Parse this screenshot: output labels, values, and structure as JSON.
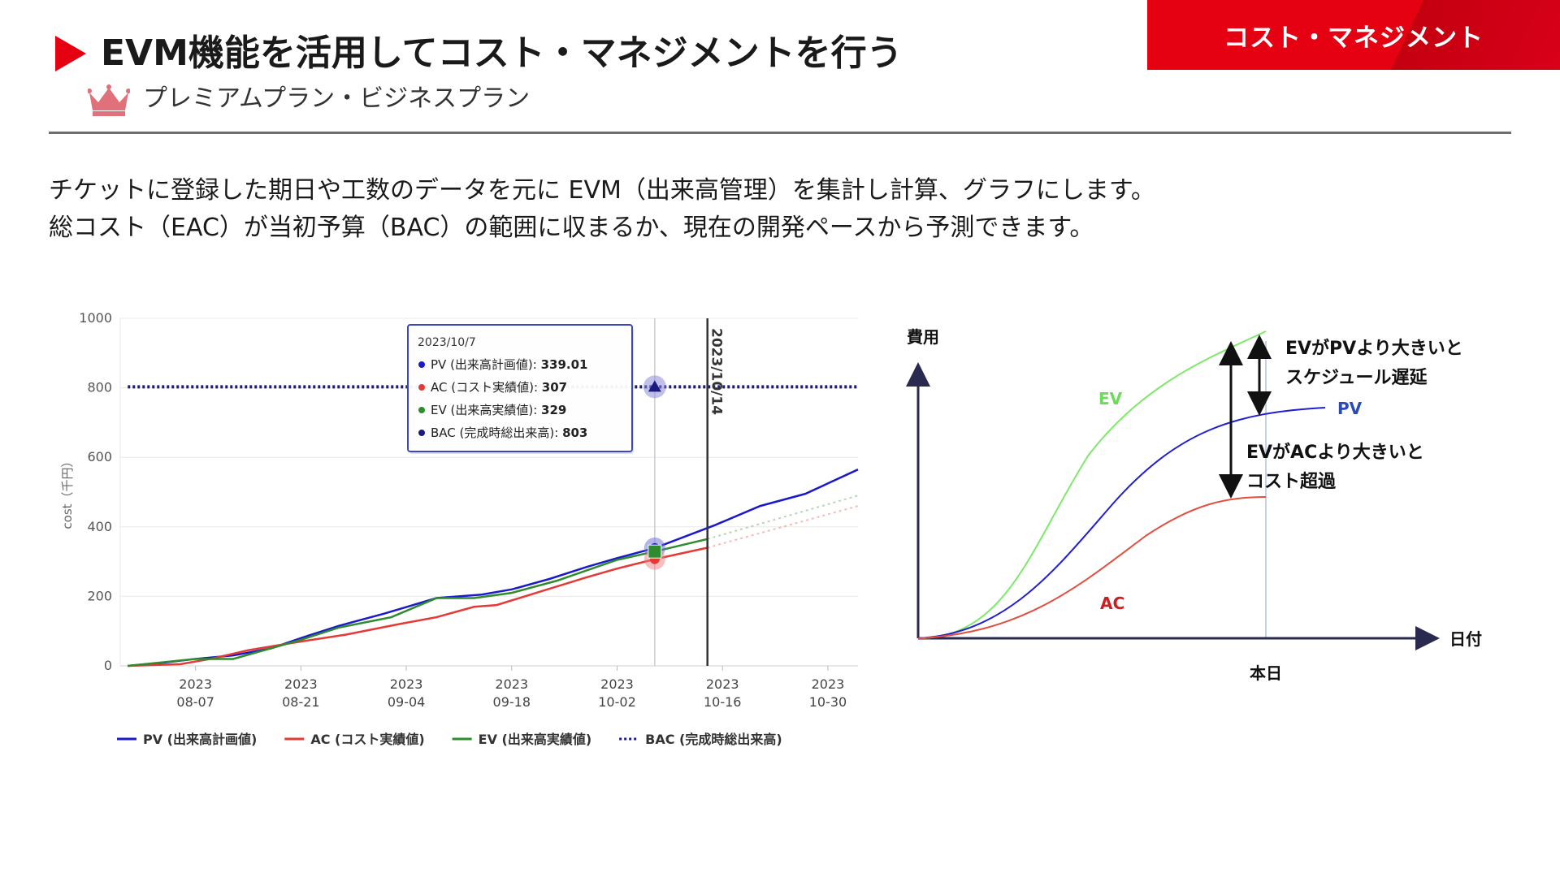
{
  "header": {
    "badge": "コスト・マネジメント",
    "title": "EVM機能を活用してコスト・マネジメントを行う",
    "plan": "プレミアムプラン・ビジネスプラン"
  },
  "description": {
    "line1": "チケットに登録した期日や工数のデータを元に EVM（出来高管理）を集計し計算、グラフにします。",
    "line2": "総コスト（EAC）が当初予算（BAC）の範囲に収まるか、現在の開発ペースから予測できます。"
  },
  "colors": {
    "accent": "#e50012",
    "pv": "#1a1acc",
    "ac": "#e53935",
    "ev": "#2e8b2e",
    "bac": "#1a1a80",
    "concept_ev": "#7fe86a",
    "concept_pv": "#2020d0",
    "concept_ac": "#e05040"
  },
  "chart_data": [
    {
      "type": "line",
      "title": "",
      "ylabel": "cost（千円）",
      "xlabel": "",
      "ylim": [
        0,
        1000
      ],
      "xlim": [
        "2023-07-28",
        "2023-11-03"
      ],
      "y_ticks": [
        "0",
        "200",
        "400",
        "600",
        "800",
        "1000"
      ],
      "x_ticks": [
        {
          "date": "2023-08-07",
          "year": "2023",
          "md": "08-07"
        },
        {
          "date": "2023-08-21",
          "year": "2023",
          "md": "08-21"
        },
        {
          "date": "2023-09-04",
          "year": "2023",
          "md": "09-04"
        },
        {
          "date": "2023-09-18",
          "year": "2023",
          "md": "09-18"
        },
        {
          "date": "2023-10-02",
          "year": "2023",
          "md": "10-02"
        },
        {
          "date": "2023-10-16",
          "year": "2023",
          "md": "10-16"
        },
        {
          "date": "2023-10-30",
          "year": "2023",
          "md": "10-30"
        }
      ],
      "grid": true,
      "legend_position": "bottom",
      "series": [
        {
          "key": "pv",
          "name": "PV (出来高計画値)",
          "x": [
            "2023-07-29",
            "2023-08-03",
            "2023-08-07",
            "2023-08-12",
            "2023-08-17",
            "2023-08-21",
            "2023-08-26",
            "2023-09-01",
            "2023-09-08",
            "2023-09-14",
            "2023-09-18",
            "2023-09-23",
            "2023-09-28",
            "2023-10-02",
            "2023-10-07",
            "2023-10-15",
            "2023-10-21",
            "2023-10-27",
            "2023-11-03"
          ],
          "values": [
            0,
            10,
            20,
            30,
            50,
            80,
            115,
            150,
            195,
            205,
            220,
            250,
            285,
            310,
            339.01,
            405,
            460,
            495,
            565
          ]
        },
        {
          "key": "ac",
          "name": "AC (コスト実績値)",
          "x": [
            "2023-07-29",
            "2023-08-05",
            "2023-08-09",
            "2023-08-14",
            "2023-08-21",
            "2023-08-27",
            "2023-09-03",
            "2023-09-08",
            "2023-09-13",
            "2023-09-16",
            "2023-09-22",
            "2023-09-28",
            "2023-10-02",
            "2023-10-07",
            "2023-10-14"
          ],
          "values": [
            0,
            5,
            20,
            45,
            70,
            90,
            120,
            140,
            170,
            175,
            215,
            255,
            280,
            307,
            340
          ]
        },
        {
          "key": "ev",
          "name": "EV (出来高実績値)",
          "x": [
            "2023-07-29",
            "2023-08-07",
            "2023-08-12",
            "2023-08-21",
            "2023-08-26",
            "2023-09-02",
            "2023-09-08",
            "2023-09-13",
            "2023-09-18",
            "2023-09-24",
            "2023-10-02",
            "2023-10-07",
            "2023-10-14"
          ],
          "values": [
            0,
            20,
            20,
            75,
            110,
            140,
            195,
            195,
            210,
            245,
            305,
            329,
            365
          ]
        },
        {
          "key": "bac",
          "name": "BAC (完成時総出来高)",
          "x": [
            "2023-07-29",
            "2023-11-03"
          ],
          "values": [
            803,
            803
          ]
        }
      ],
      "forecast_series": [
        {
          "key": "ac",
          "x": [
            "2023-10-14",
            "2023-11-03"
          ],
          "values": [
            340,
            460
          ]
        },
        {
          "key": "ev",
          "x": [
            "2023-10-14",
            "2023-11-03"
          ],
          "values": [
            365,
            490
          ]
        }
      ],
      "today_marker": {
        "date": "2023-10-14",
        "label": "2023/10/14"
      },
      "hover_date": "2023-10-07",
      "tooltip": {
        "date": "2023/10/7",
        "rows": [
          {
            "key": "pv",
            "label": "PV (出来高計画値): ",
            "value": "339.01"
          },
          {
            "key": "ac",
            "label": "AC (コスト実績値): ",
            "value": "307"
          },
          {
            "key": "ev",
            "label": "EV (出来高実績値): ",
            "value": "329"
          },
          {
            "key": "bac",
            "label": "BAC (完成時総出来高): ",
            "value": "803"
          }
        ]
      }
    }
  ],
  "concept_diagram": {
    "y_axis_label": "費用",
    "x_axis_label": "日付",
    "today_label": "本日",
    "ev_label": "EV",
    "pv_label": "PV",
    "ac_label": "AC",
    "note_schedule_line1": "EVがPVより大きいと",
    "note_schedule_line2": "スケジュール遅延",
    "note_cost_line1": "EVがACより大きいと",
    "note_cost_line2": "コスト超過"
  }
}
